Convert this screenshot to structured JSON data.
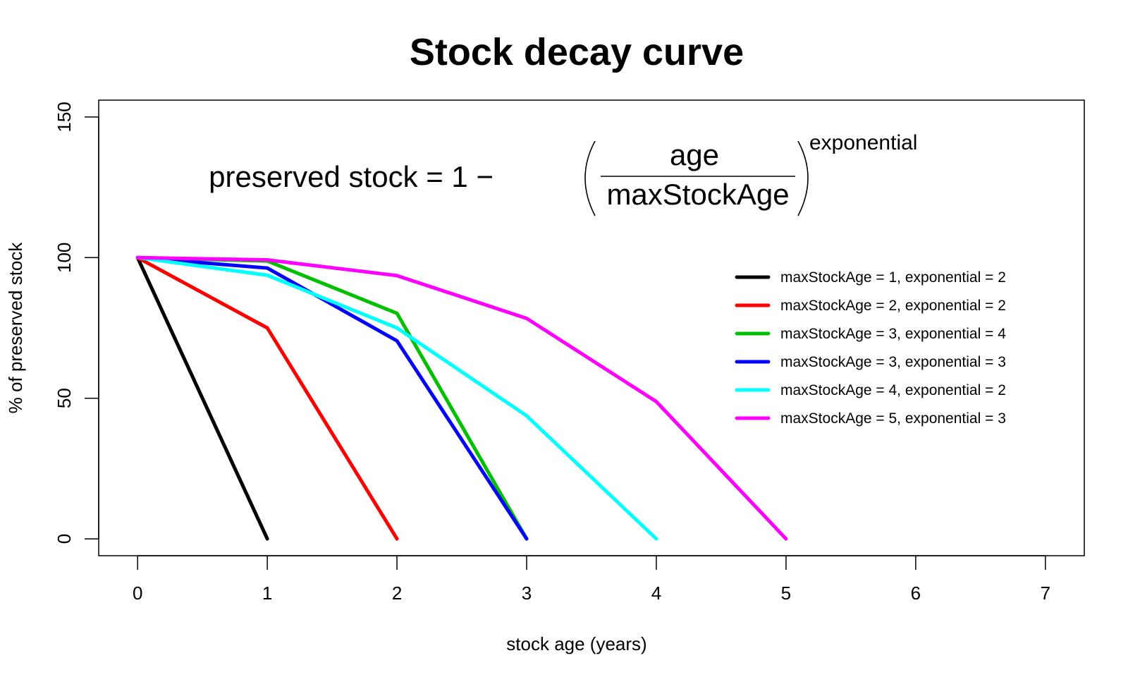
{
  "chart_data": {
    "type": "line",
    "title": "Stock decay curve",
    "xlabel": "stock age (years)",
    "ylabel": "% of preserved stock",
    "xlim": [
      -0.3,
      7.3
    ],
    "ylim": [
      -6,
      156
    ],
    "x_ticks": [
      "0",
      "1",
      "2",
      "3",
      "4",
      "5",
      "6",
      "7"
    ],
    "y_ticks": [
      "0",
      "50",
      "100",
      "150"
    ],
    "x_tick_values": [
      0,
      1,
      2,
      3,
      4,
      5,
      6,
      7
    ],
    "y_tick_values": [
      0,
      50,
      100,
      150
    ],
    "grid": false,
    "legend_position": "right",
    "formula": {
      "lhs": "preserved stock = 1 −",
      "numerator": "age",
      "denominator": "maxStockAge",
      "exponent": "exponential"
    },
    "series": [
      {
        "name": "maxStockAge = 1, exponential = 2",
        "color": "#000000",
        "x": [
          0,
          1
        ],
        "y": [
          100,
          0
        ]
      },
      {
        "name": "maxStockAge = 2, exponential = 2",
        "color": "#ff0000",
        "x": [
          0,
          1,
          2
        ],
        "y": [
          100,
          75,
          0
        ]
      },
      {
        "name": "maxStockAge = 3, exponential = 4",
        "color": "#00c000",
        "x": [
          0,
          1,
          2,
          3
        ],
        "y": [
          100,
          98.8,
          80.2,
          0
        ]
      },
      {
        "name": "maxStockAge = 3, exponential = 3",
        "color": "#0000ff",
        "x": [
          0,
          1,
          2,
          3
        ],
        "y": [
          100,
          96.3,
          70.4,
          0
        ]
      },
      {
        "name": "maxStockAge = 4, exponential = 2",
        "color": "#00ffff",
        "x": [
          0,
          1,
          2,
          3,
          4
        ],
        "y": [
          100,
          93.75,
          75,
          43.75,
          0
        ]
      },
      {
        "name": "maxStockAge = 5, exponential = 3",
        "color": "#ff00ff",
        "x": [
          0,
          1,
          2,
          3,
          4,
          5
        ],
        "y": [
          100,
          99.2,
          93.6,
          78.4,
          48.8,
          0
        ]
      }
    ]
  }
}
